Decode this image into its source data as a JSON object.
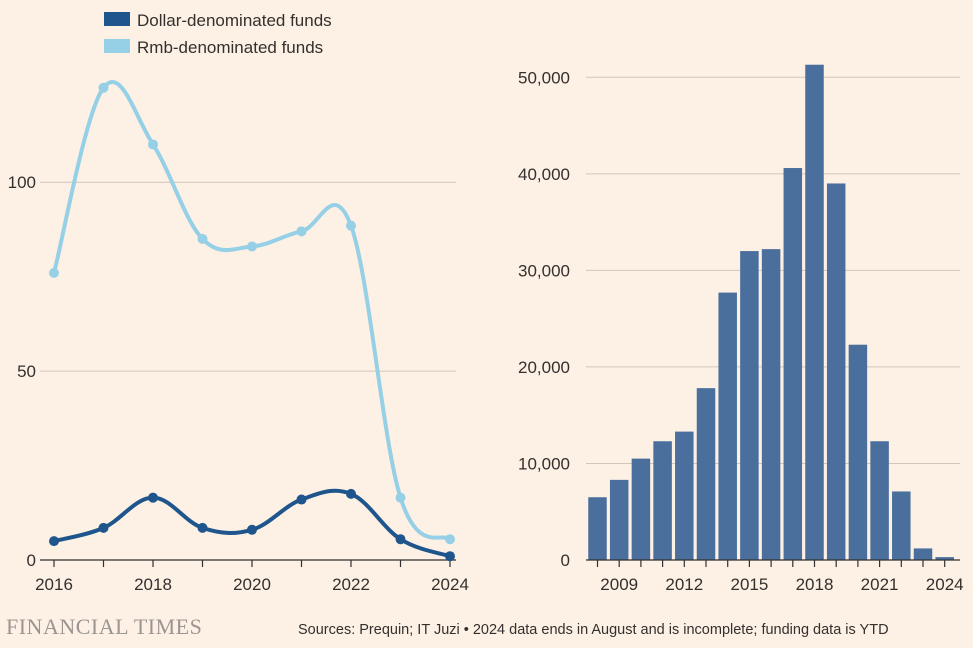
{
  "chart_data": [
    {
      "type": "line",
      "x": [
        2016,
        2017,
        2018,
        2019,
        2020,
        2021,
        2022,
        2023,
        2024
      ],
      "series": [
        {
          "name": "Dollar-denominated funds",
          "color": "#1e558c",
          "values": [
            5,
            8.5,
            16.5,
            8.5,
            8,
            16,
            17.5,
            5.5,
            1
          ]
        },
        {
          "name": "Rmb-denominated funds",
          "color": "#96d0e6",
          "values": [
            76,
            125,
            110,
            85,
            83,
            87,
            88.5,
            16.5,
            5.5
          ]
        }
      ],
      "ylim": [
        0,
        135
      ],
      "yticks": [
        0,
        50,
        100
      ],
      "yticks_labels": [
        "0",
        "50",
        "100"
      ],
      "xticks": [
        2016,
        2018,
        2020,
        2022,
        2024
      ],
      "xticks_labels": [
        "2016",
        "2018",
        "2020",
        "2022",
        "2024"
      ],
      "legend": [
        {
          "label": "Dollar-denominated funds",
          "color": "#1e558c"
        },
        {
          "label": "Rmb-denominated funds",
          "color": "#96d0e6"
        }
      ],
      "title": "",
      "xlabel": "",
      "ylabel": ""
    },
    {
      "type": "bar",
      "categories": [
        2008,
        2009,
        2010,
        2011,
        2012,
        2013,
        2014,
        2015,
        2016,
        2017,
        2018,
        2019,
        2020,
        2021,
        2022,
        2023,
        2024
      ],
      "values": [
        6500,
        8300,
        10500,
        12300,
        13300,
        17800,
        27700,
        32000,
        32200,
        40600,
        51300,
        39000,
        22300,
        12300,
        7100,
        1200,
        300
      ],
      "color": "#4a6f9c",
      "ylim": [
        0,
        55000
      ],
      "yticks": [
        0,
        10000,
        20000,
        30000,
        40000,
        50000
      ],
      "yticks_labels": [
        "0",
        "10,000",
        "20,000",
        "30,000",
        "40,000",
        "50,000"
      ],
      "xticks": [
        2009,
        2012,
        2015,
        2018,
        2021,
        2024
      ],
      "xticks_labels": [
        "2009",
        "2012",
        "2015",
        "2018",
        "2021",
        "2024"
      ],
      "title": "",
      "xlabel": "",
      "ylabel": ""
    }
  ],
  "footer": {
    "logo": "FINANCIAL TIMES",
    "source": "Sources: Prequin; IT Juzi • 2024 data ends in August and is incomplete; funding data is YTD"
  }
}
